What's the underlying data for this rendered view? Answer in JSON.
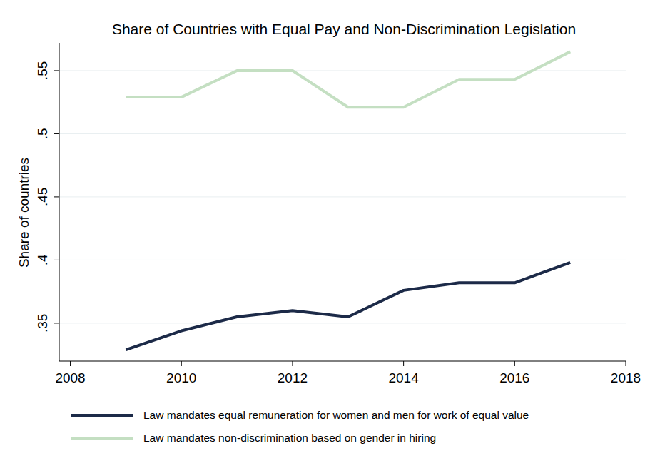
{
  "chart_data": {
    "type": "line",
    "title": "Share of Countries with Equal Pay and Non-Discrimination Legislation",
    "y_label": "Share of countries",
    "x": [
      2009,
      2010,
      2011,
      2012,
      2013,
      2014,
      2015,
      2016,
      2017
    ],
    "series": [
      {
        "name": "Law mandates equal remuneration for women and men for work of equal value",
        "color": "#1c2a48",
        "values": [
          0.329,
          0.344,
          0.355,
          0.36,
          0.355,
          0.376,
          0.382,
          0.382,
          0.398
        ]
      },
      {
        "name": "Law mandates non-discrimination based on gender in hiring",
        "color": "#c4dfc2",
        "values": [
          0.529,
          0.529,
          0.55,
          0.55,
          0.521,
          0.521,
          0.543,
          0.543,
          0.565
        ]
      }
    ],
    "xlim": [
      2007.8,
      2018
    ],
    "xticks": [
      2008,
      2010,
      2012,
      2014,
      2016,
      2018
    ],
    "ylim": [
      0.32,
      0.572
    ],
    "yticks": [
      {
        "value": 0.35,
        "label": ".35"
      },
      {
        "value": 0.4,
        "label": ".4"
      },
      {
        "value": 0.45,
        "label": ".45"
      },
      {
        "value": 0.5,
        "label": ".5"
      },
      {
        "value": 0.55,
        "label": ".55"
      }
    ],
    "grid": true,
    "legend": "bottom"
  }
}
